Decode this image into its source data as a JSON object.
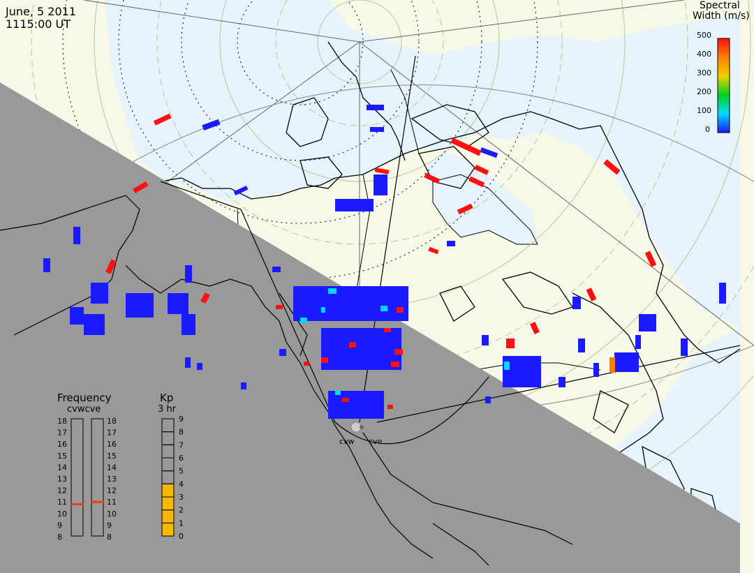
{
  "header": {
    "date": "June, 5 2011",
    "time": "1115:00 UT"
  },
  "colorbar": {
    "title_line1": "Spectral",
    "title_line2": "Width (m/s)",
    "ticks": [
      "500",
      "400",
      "300",
      "200",
      "100",
      "0"
    ],
    "gradient": [
      "#1a1aff",
      "#00d8ff",
      "#00d020",
      "#f0d000",
      "#ff8000",
      "#ff1010"
    ]
  },
  "radars": [
    "cvw",
    "cve"
  ],
  "frequency": {
    "title": "Frequency",
    "subtitle": "cvwcve",
    "ticks": [
      "18",
      "17",
      "16",
      "15",
      "14",
      "13",
      "12",
      "11",
      "10",
      "9",
      "8"
    ],
    "cvw_mhz": 10.8,
    "cve_mhz": 11.0,
    "marker_color": "#e84010"
  },
  "kp": {
    "title": "Kp",
    "subtitle": "3 hr",
    "ticks": [
      "9",
      "8",
      "7",
      "6",
      "5",
      "4",
      "3",
      "2",
      "1",
      "0"
    ],
    "value": 4,
    "fill_color": "#f5b800"
  },
  "colors": {
    "land_day": "#f8f8e8",
    "ocean_day": "#e6f3fb",
    "night_shade": "#999999",
    "high_width": "#ff1010",
    "low_width": "#1a1aff",
    "medium_width": "#00d8ff"
  }
}
